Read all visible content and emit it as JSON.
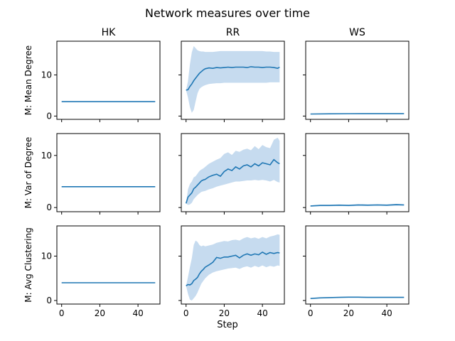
{
  "figure": {
    "title": "Network measures over time",
    "xlabel": "Step",
    "columns": [
      "HK",
      "RR",
      "WS"
    ],
    "rows": [
      "M: Mean Degree",
      "M: Var of Degree",
      "M: Avg Clustering"
    ]
  },
  "colors": {
    "line": "#1f77b4",
    "band": "#c6dbef",
    "axes": "#000000",
    "background": "#ffffff"
  },
  "chart_data": [
    {
      "type": "line",
      "row": 0,
      "col": 0,
      "title": "HK",
      "ylabel": "M: Mean Degree",
      "x": [
        0,
        49
      ],
      "values": [
        3.5,
        3.5
      ],
      "band_lower": [
        3.5,
        3.5
      ],
      "band_upper": [
        3.5,
        3.5
      ],
      "xlim": [
        -2.5,
        51.5
      ],
      "ylim": [
        -0.8,
        18.2
      ],
      "xticks": [
        0,
        20,
        40
      ],
      "yticks": [
        0,
        10
      ]
    },
    {
      "type": "line",
      "row": 0,
      "col": 1,
      "title": "RR",
      "ylabel": "",
      "x": [
        0,
        1,
        2,
        3,
        4,
        5,
        6,
        7,
        8,
        9,
        10,
        12,
        14,
        16,
        18,
        20,
        22,
        24,
        26,
        28,
        30,
        32,
        34,
        36,
        38,
        40,
        42,
        44,
        46,
        48,
        49
      ],
      "values": [
        6.3,
        6.4,
        7.2,
        7.8,
        8.6,
        9.2,
        9.8,
        10.4,
        10.8,
        11.2,
        11.5,
        11.7,
        11.6,
        11.8,
        11.7,
        11.8,
        11.9,
        11.8,
        11.9,
        11.9,
        11.9,
        11.8,
        12.0,
        11.9,
        11.9,
        11.8,
        11.9,
        11.9,
        11.8,
        11.6,
        11.9
      ],
      "band_lower": [
        6.3,
        4.5,
        2.2,
        0.8,
        1.5,
        3.5,
        5.5,
        6.6,
        7.0,
        7.3,
        7.5,
        7.8,
        7.9,
        8.0,
        8.0,
        8.1,
        8.1,
        8.1,
        8.1,
        8.1,
        8.1,
        8.1,
        8.1,
        8.1,
        8.1,
        8.1,
        8.1,
        8.2,
        8.2,
        8.2,
        8.2
      ],
      "band_upper": [
        6.3,
        8.5,
        12.5,
        15.5,
        17.0,
        16.5,
        16.0,
        15.8,
        15.7,
        15.7,
        15.6,
        15.6,
        15.6,
        15.7,
        15.8,
        15.8,
        15.8,
        15.8,
        15.8,
        15.8,
        15.8,
        15.8,
        15.8,
        15.8,
        15.8,
        15.8,
        15.7,
        15.7,
        15.6,
        15.6,
        15.6
      ],
      "xlim": [
        -2.5,
        51.5
      ],
      "ylim": [
        -0.8,
        18.2
      ],
      "xticks": [
        0,
        20,
        40
      ],
      "yticks": [
        0,
        10
      ]
    },
    {
      "type": "line",
      "row": 0,
      "col": 2,
      "title": "WS",
      "ylabel": "",
      "x": [
        0,
        10,
        20,
        30,
        40,
        49
      ],
      "values": [
        0.5,
        0.55,
        0.58,
        0.6,
        0.6,
        0.6
      ],
      "band_lower": [
        0.45,
        0.45,
        0.48,
        0.5,
        0.5,
        0.5
      ],
      "band_upper": [
        0.55,
        0.65,
        0.68,
        0.7,
        0.7,
        0.7
      ],
      "xlim": [
        -2.5,
        51.5
      ],
      "ylim": [
        -0.8,
        18.2
      ],
      "xticks": [
        0,
        20,
        40
      ],
      "yticks": [
        0,
        10
      ]
    },
    {
      "type": "line",
      "row": 1,
      "col": 0,
      "title": "",
      "ylabel": "M: Var of Degree",
      "x": [
        0,
        49
      ],
      "values": [
        4.0,
        4.0
      ],
      "band_lower": [
        4.0,
        4.0
      ],
      "band_upper": [
        4.0,
        4.0
      ],
      "xlim": [
        -2.5,
        51.5
      ],
      "ylim": [
        -0.8,
        14.2
      ],
      "xticks": [
        0,
        20,
        40
      ],
      "yticks": [
        0,
        10
      ]
    },
    {
      "type": "line",
      "row": 1,
      "col": 1,
      "title": "",
      "ylabel": "",
      "x": [
        0,
        1,
        2,
        3,
        4,
        5,
        6,
        7,
        8,
        9,
        10,
        12,
        14,
        16,
        18,
        20,
        22,
        24,
        26,
        28,
        30,
        32,
        34,
        36,
        38,
        40,
        42,
        44,
        46,
        48,
        49
      ],
      "values": [
        0.8,
        2.0,
        2.4,
        2.8,
        3.6,
        3.9,
        4.3,
        4.7,
        5.1,
        5.3,
        5.4,
        5.9,
        6.2,
        6.4,
        6.0,
        6.9,
        7.4,
        7.1,
        7.8,
        7.4,
        8.0,
        8.2,
        7.8,
        8.4,
        8.0,
        8.6,
        8.4,
        8.2,
        9.2,
        8.6,
        8.4
      ],
      "band_lower": [
        0.8,
        0.5,
        0.6,
        0.9,
        1.6,
        2.0,
        2.4,
        2.7,
        3.0,
        3.1,
        3.2,
        3.5,
        3.7,
        4.0,
        4.2,
        4.4,
        4.6,
        4.8,
        5.0,
        5.0,
        5.1,
        5.2,
        5.2,
        5.3,
        5.2,
        5.3,
        5.2,
        5.0,
        5.3,
        4.9,
        4.8
      ],
      "band_upper": [
        0.8,
        3.5,
        4.5,
        5.0,
        5.8,
        6.0,
        6.5,
        7.0,
        7.3,
        7.5,
        7.8,
        8.4,
        8.8,
        9.2,
        9.5,
        10.3,
        10.6,
        10.1,
        10.9,
        10.7,
        11.1,
        11.3,
        11.0,
        11.8,
        11.2,
        12.0,
        11.6,
        11.4,
        13.0,
        13.4,
        12.8
      ],
      "xlim": [
        -2.5,
        51.5
      ],
      "ylim": [
        -0.8,
        14.2
      ],
      "xticks": [
        0,
        20,
        40
      ],
      "yticks": [
        0,
        10
      ]
    },
    {
      "type": "line",
      "row": 1,
      "col": 2,
      "title": "",
      "ylabel": "",
      "x": [
        0,
        5,
        10,
        15,
        20,
        25,
        30,
        35,
        40,
        45,
        49
      ],
      "values": [
        0.3,
        0.4,
        0.4,
        0.45,
        0.4,
        0.5,
        0.45,
        0.5,
        0.45,
        0.55,
        0.5
      ],
      "band_lower": [
        0.2,
        0.25,
        0.25,
        0.3,
        0.25,
        0.3,
        0.3,
        0.35,
        0.3,
        0.35,
        0.35
      ],
      "band_upper": [
        0.4,
        0.55,
        0.55,
        0.6,
        0.55,
        0.65,
        0.6,
        0.65,
        0.6,
        0.7,
        0.65
      ],
      "xlim": [
        -2.5,
        51.5
      ],
      "ylim": [
        -0.8,
        14.2
      ],
      "xticks": [
        0,
        20,
        40
      ],
      "yticks": [
        0,
        10
      ]
    },
    {
      "type": "line",
      "row": 2,
      "col": 0,
      "title": "",
      "ylabel": "M: Avg Clustering",
      "x": [
        0,
        49
      ],
      "values": [
        4.0,
        4.0
      ],
      "band_lower": [
        4.0,
        4.0
      ],
      "band_upper": [
        4.0,
        4.0
      ],
      "xlim": [
        -2.5,
        51.5
      ],
      "ylim": [
        -0.8,
        16.8
      ],
      "xticks": [
        0,
        20,
        40
      ],
      "yticks": [
        0,
        10
      ]
    },
    {
      "type": "line",
      "row": 2,
      "col": 1,
      "title": "",
      "ylabel": "",
      "x": [
        0,
        1,
        2,
        3,
        4,
        5,
        6,
        7,
        8,
        9,
        10,
        12,
        14,
        16,
        18,
        20,
        22,
        24,
        26,
        28,
        30,
        32,
        34,
        36,
        38,
        40,
        42,
        44,
        46,
        48,
        49
      ],
      "values": [
        3.3,
        3.6,
        3.5,
        3.8,
        4.5,
        4.8,
        5.2,
        6.0,
        6.6,
        7.0,
        7.5,
        8.0,
        8.6,
        9.7,
        9.5,
        9.8,
        9.8,
        10.0,
        10.2,
        9.6,
        10.2,
        10.5,
        10.2,
        10.5,
        10.3,
        10.9,
        10.4,
        10.8,
        10.6,
        10.8,
        10.7
      ],
      "band_lower": [
        3.3,
        1.5,
        0.2,
        0.0,
        0.5,
        1.0,
        1.8,
        2.8,
        3.8,
        4.4,
        5.0,
        5.8,
        6.3,
        6.6,
        6.8,
        7.0,
        7.2,
        7.3,
        7.4,
        7.1,
        7.5,
        7.7,
        7.4,
        7.8,
        7.5,
        7.9,
        7.5,
        7.8,
        7.6,
        7.9,
        7.8
      ],
      "band_upper": [
        3.3,
        5.3,
        7.5,
        9.5,
        12.5,
        13.5,
        13.2,
        12.5,
        12.2,
        12.4,
        12.2,
        12.4,
        12.6,
        13.0,
        13.2,
        13.4,
        13.3,
        13.6,
        13.7,
        13.5,
        14.0,
        14.3,
        14.0,
        14.2,
        13.9,
        14.3,
        14.0,
        14.4,
        14.6,
        14.9,
        14.8
      ],
      "xlim": [
        -2.5,
        51.5
      ],
      "ylim": [
        -0.8,
        16.8
      ],
      "xticks": [
        0,
        20,
        40
      ],
      "yticks": [
        0,
        10
      ]
    },
    {
      "type": "line",
      "row": 2,
      "col": 2,
      "title": "",
      "ylabel": "",
      "x": [
        0,
        5,
        10,
        15,
        20,
        25,
        30,
        35,
        40,
        45,
        49
      ],
      "values": [
        0.45,
        0.6,
        0.65,
        0.7,
        0.75,
        0.75,
        0.7,
        0.7,
        0.7,
        0.7,
        0.7
      ],
      "band_lower": [
        0.4,
        0.5,
        0.55,
        0.6,
        0.65,
        0.65,
        0.6,
        0.6,
        0.6,
        0.6,
        0.6
      ],
      "band_upper": [
        0.5,
        0.7,
        0.75,
        0.8,
        0.85,
        0.85,
        0.8,
        0.8,
        0.8,
        0.8,
        0.8
      ],
      "xlim": [
        -2.5,
        51.5
      ],
      "ylim": [
        -0.8,
        16.8
      ],
      "xticks": [
        0,
        20,
        40
      ],
      "yticks": [
        0,
        10
      ]
    }
  ]
}
